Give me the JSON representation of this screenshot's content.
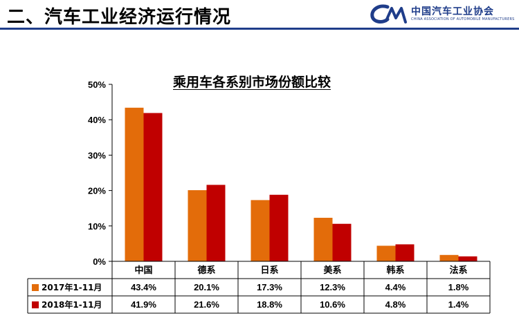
{
  "header": {
    "title": "二、汽车工业经济运行情况",
    "logo_cn": "中国汽车工业协会",
    "logo_en": "CHINA ASSOCIATION OF AUTOMOBILE MANUFACTURERS"
  },
  "colors": {
    "series_2017": "#e36c0a",
    "series_2018": "#c00000",
    "brand": "#1f3d8a"
  },
  "chart_data": {
    "type": "bar",
    "title": "乘用车各系别市场份额比较",
    "categories": [
      "中国",
      "德系",
      "日系",
      "美系",
      "韩系",
      "法系"
    ],
    "series": [
      {
        "name": "2017年1-11月",
        "values": [
          43.4,
          20.1,
          17.3,
          12.3,
          4.4,
          1.8
        ]
      },
      {
        "name": "2018年1-11月",
        "values": [
          41.9,
          21.6,
          18.8,
          10.6,
          4.8,
          1.4
        ]
      }
    ],
    "ylim": [
      0,
      50
    ],
    "yticks": [
      0,
      10,
      20,
      30,
      40,
      50
    ],
    "ytick_labels": [
      "0%",
      "10%",
      "20%",
      "30%",
      "40%",
      "50%"
    ],
    "value_labels": [
      [
        "43.4%",
        "20.1%",
        "17.3%",
        "12.3%",
        "4.4%",
        "1.8%"
      ],
      [
        "41.9%",
        "21.6%",
        "18.8%",
        "10.6%",
        "4.8%",
        "1.4%"
      ]
    ],
    "grid": false,
    "legend": "data-table"
  }
}
